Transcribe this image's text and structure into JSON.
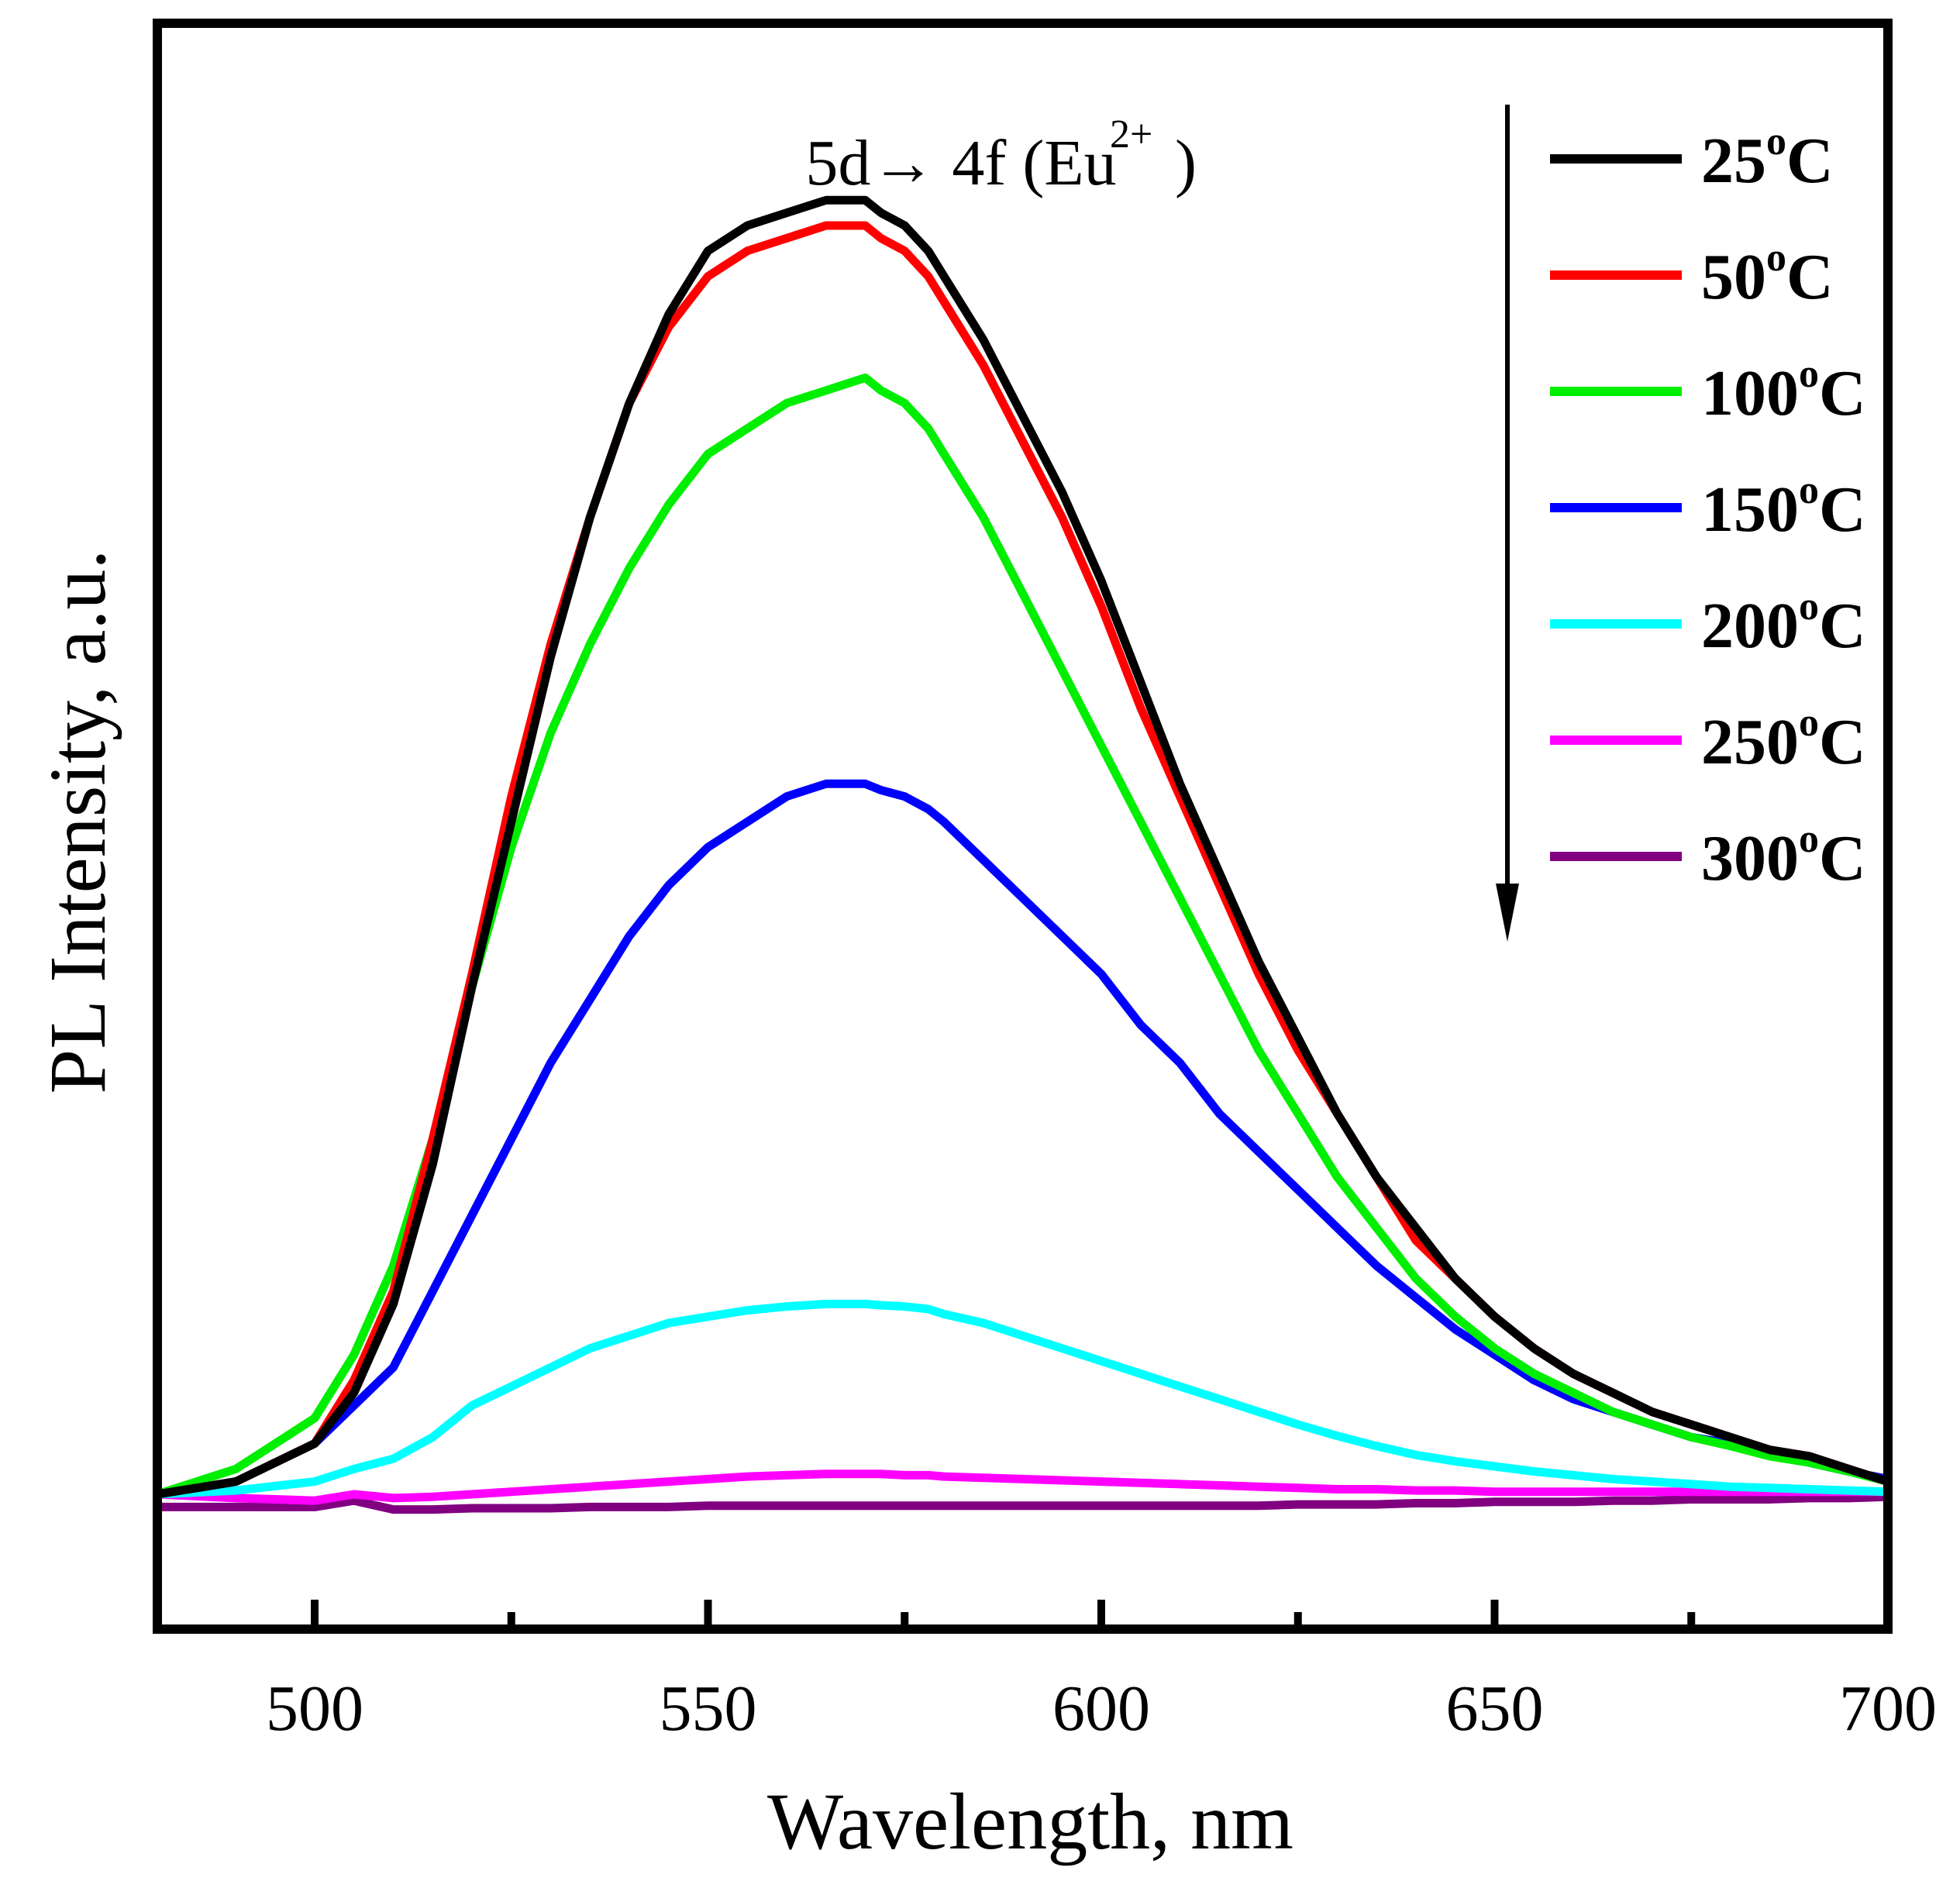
{
  "chart_data": {
    "type": "line",
    "xlabel": "Wavelength, nm",
    "ylabel": "PL Intensity, a.u.",
    "xlim": [
      480,
      700
    ],
    "ylim": [
      -0.12,
      1.0
    ],
    "xticks": [
      500,
      550,
      600,
      650,
      700
    ],
    "grid": false,
    "legend_position": "top-right",
    "annotation": {
      "main": "5d→ 4f (Eu",
      "sup": "2+",
      "close": ")"
    },
    "trend_arrow": "down",
    "degree_mark": "o",
    "series": [
      {
        "name": "25",
        "unit": "C",
        "color": "#000000",
        "x": [
          480,
          490,
          500,
          505,
          510,
          515,
          520,
          525,
          530,
          535,
          540,
          545,
          550,
          555,
          560,
          565,
          570,
          572,
          575,
          578,
          580,
          585,
          590,
          595,
          600,
          605,
          610,
          615,
          620,
          625,
          630,
          635,
          640,
          645,
          650,
          655,
          660,
          665,
          670,
          675,
          680,
          685,
          690,
          695,
          700
        ],
        "y": [
          0.0,
          0.01,
          0.04,
          0.08,
          0.15,
          0.26,
          0.4,
          0.53,
          0.66,
          0.77,
          0.86,
          0.93,
          0.98,
          1.0,
          1.01,
          1.02,
          1.02,
          1.01,
          1.0,
          0.98,
          0.96,
          0.91,
          0.85,
          0.79,
          0.72,
          0.64,
          0.56,
          0.49,
          0.42,
          0.36,
          0.3,
          0.25,
          0.21,
          0.17,
          0.14,
          0.115,
          0.095,
          0.08,
          0.065,
          0.055,
          0.045,
          0.035,
          0.03,
          0.02,
          0.01
        ]
      },
      {
        "name": "50",
        "unit": "C",
        "color": "#ff0000",
        "x": [
          480,
          490,
          500,
          505,
          510,
          515,
          520,
          525,
          530,
          535,
          540,
          545,
          550,
          555,
          560,
          565,
          570,
          572,
          575,
          578,
          580,
          585,
          590,
          595,
          600,
          605,
          610,
          615,
          620,
          625,
          630,
          635,
          640,
          645,
          650,
          655,
          660,
          665,
          670,
          675,
          680,
          685,
          690,
          695,
          700
        ],
        "y": [
          0.0,
          0.01,
          0.04,
          0.09,
          0.16,
          0.28,
          0.41,
          0.55,
          0.67,
          0.77,
          0.86,
          0.92,
          0.96,
          0.98,
          0.99,
          1.0,
          1.0,
          0.99,
          0.98,
          0.96,
          0.94,
          0.89,
          0.83,
          0.77,
          0.7,
          0.62,
          0.55,
          0.48,
          0.41,
          0.35,
          0.3,
          0.25,
          0.2,
          0.17,
          0.14,
          0.115,
          0.095,
          0.08,
          0.065,
          0.055,
          0.045,
          0.035,
          0.03,
          0.02,
          0.01
        ]
      },
      {
        "name": "100",
        "unit": "C",
        "color": "#00ee00",
        "x": [
          480,
          490,
          500,
          505,
          510,
          515,
          520,
          525,
          530,
          535,
          540,
          545,
          550,
          555,
          560,
          565,
          570,
          572,
          575,
          578,
          580,
          585,
          590,
          595,
          600,
          605,
          610,
          615,
          620,
          625,
          630,
          635,
          640,
          645,
          650,
          655,
          660,
          665,
          670,
          675,
          680,
          685,
          690,
          695,
          700
        ],
        "y": [
          0.0,
          0.02,
          0.06,
          0.11,
          0.18,
          0.28,
          0.4,
          0.51,
          0.6,
          0.67,
          0.73,
          0.78,
          0.82,
          0.84,
          0.86,
          0.87,
          0.88,
          0.87,
          0.86,
          0.84,
          0.82,
          0.77,
          0.71,
          0.65,
          0.59,
          0.53,
          0.47,
          0.41,
          0.35,
          0.3,
          0.25,
          0.21,
          0.17,
          0.14,
          0.115,
          0.095,
          0.08,
          0.065,
          0.055,
          0.045,
          0.038,
          0.03,
          0.025,
          0.018,
          0.01
        ]
      },
      {
        "name": "150",
        "unit": "C",
        "color": "#0000ff",
        "x": [
          480,
          490,
          500,
          505,
          510,
          515,
          520,
          525,
          530,
          535,
          540,
          545,
          550,
          555,
          560,
          565,
          570,
          572,
          575,
          578,
          580,
          585,
          590,
          595,
          600,
          605,
          610,
          615,
          620,
          625,
          630,
          635,
          640,
          645,
          650,
          655,
          660,
          665,
          670,
          675,
          680,
          685,
          690,
          695,
          700
        ],
        "y": [
          0.0,
          0.01,
          0.04,
          0.07,
          0.1,
          0.16,
          0.22,
          0.28,
          0.34,
          0.39,
          0.44,
          0.48,
          0.51,
          0.53,
          0.55,
          0.56,
          0.56,
          0.555,
          0.55,
          0.54,
          0.53,
          0.5,
          0.47,
          0.44,
          0.41,
          0.37,
          0.34,
          0.3,
          0.27,
          0.24,
          0.21,
          0.18,
          0.155,
          0.13,
          0.11,
          0.09,
          0.075,
          0.065,
          0.055,
          0.045,
          0.04,
          0.032,
          0.025,
          0.018,
          0.012
        ]
      },
      {
        "name": "200",
        "unit": "C",
        "color": "#00ffff",
        "x": [
          480,
          490,
          500,
          505,
          510,
          515,
          520,
          525,
          530,
          535,
          540,
          545,
          550,
          555,
          560,
          565,
          570,
          572,
          575,
          578,
          580,
          585,
          590,
          595,
          600,
          605,
          610,
          615,
          620,
          625,
          630,
          635,
          640,
          645,
          650,
          655,
          660,
          665,
          670,
          675,
          680,
          685,
          690,
          695,
          700
        ],
        "y": [
          0.0,
          0.003,
          0.01,
          0.02,
          0.028,
          0.045,
          0.07,
          0.085,
          0.1,
          0.115,
          0.125,
          0.135,
          0.14,
          0.145,
          0.148,
          0.15,
          0.15,
          0.149,
          0.148,
          0.146,
          0.142,
          0.135,
          0.125,
          0.115,
          0.105,
          0.095,
          0.085,
          0.075,
          0.065,
          0.055,
          0.046,
          0.038,
          0.031,
          0.026,
          0.022,
          0.018,
          0.015,
          0.012,
          0.01,
          0.008,
          0.006,
          0.005,
          0.004,
          0.003,
          0.002
        ]
      },
      {
        "name": "250",
        "unit": "C",
        "color": "#ff00ff",
        "x": [
          480,
          490,
          500,
          505,
          510,
          515,
          520,
          525,
          530,
          535,
          540,
          545,
          550,
          555,
          560,
          565,
          570,
          572,
          575,
          578,
          580,
          585,
          590,
          595,
          600,
          605,
          610,
          615,
          620,
          625,
          630,
          635,
          640,
          645,
          650,
          655,
          660,
          665,
          670,
          675,
          680,
          685,
          690,
          695,
          700
        ],
        "y": [
          0.0,
          -0.003,
          -0.005,
          0.0,
          -0.003,
          -0.002,
          0.0,
          0.002,
          0.004,
          0.006,
          0.008,
          0.01,
          0.012,
          0.014,
          0.015,
          0.016,
          0.016,
          0.016,
          0.015,
          0.015,
          0.014,
          0.013,
          0.012,
          0.011,
          0.01,
          0.009,
          0.008,
          0.007,
          0.006,
          0.005,
          0.004,
          0.004,
          0.003,
          0.003,
          0.002,
          0.002,
          0.002,
          0.002,
          0.002,
          0.002,
          0.002,
          0.002,
          0.002,
          0.002,
          0.002
        ]
      },
      {
        "name": "300",
        "unit": "C",
        "color": "#800080",
        "x": [
          480,
          490,
          500,
          505,
          510,
          515,
          520,
          525,
          530,
          535,
          540,
          545,
          550,
          555,
          560,
          565,
          570,
          572,
          575,
          578,
          580,
          585,
          590,
          595,
          600,
          605,
          610,
          615,
          620,
          625,
          630,
          635,
          640,
          645,
          650,
          655,
          660,
          665,
          670,
          675,
          680,
          685,
          690,
          695,
          700
        ],
        "y": [
          -0.01,
          -0.01,
          -0.01,
          -0.005,
          -0.012,
          -0.012,
          -0.011,
          -0.011,
          -0.011,
          -0.01,
          -0.01,
          -0.01,
          -0.009,
          -0.009,
          -0.009,
          -0.009,
          -0.009,
          -0.009,
          -0.009,
          -0.009,
          -0.009,
          -0.009,
          -0.009,
          -0.009,
          -0.009,
          -0.009,
          -0.009,
          -0.009,
          -0.009,
          -0.008,
          -0.008,
          -0.008,
          -0.007,
          -0.007,
          -0.006,
          -0.006,
          -0.006,
          -0.005,
          -0.005,
          -0.004,
          -0.004,
          -0.004,
          -0.003,
          -0.003,
          -0.002
        ]
      }
    ]
  }
}
